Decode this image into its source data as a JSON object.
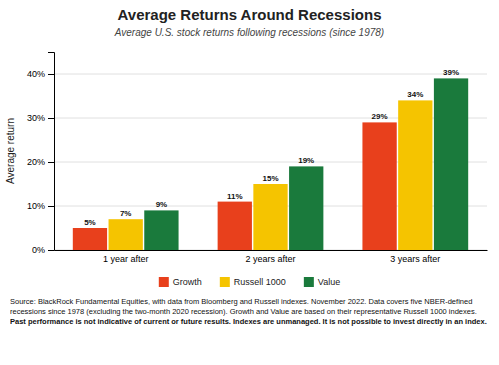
{
  "chart_data": {
    "type": "bar",
    "title": "Average Returns Around Recessions",
    "subtitle": "Average U.S. stock returns following recessions (since 1978)",
    "categories": [
      "1 year after",
      "2 years after",
      "3 years after"
    ],
    "series": [
      {
        "name": "Growth",
        "color": "#E8401C",
        "values": [
          5,
          11,
          29
        ],
        "value_labels": [
          "5%",
          "11%",
          "29%"
        ]
      },
      {
        "name": "Russell 1000",
        "color": "#F5C400",
        "values": [
          7,
          15,
          34
        ],
        "value_labels": [
          "7%",
          "15%",
          "34%"
        ]
      },
      {
        "name": "Value",
        "color": "#1A7A3C",
        "values": [
          9,
          19,
          39
        ],
        "value_labels": [
          "9%",
          "19%",
          "39%"
        ]
      }
    ],
    "ylabel": "Average return",
    "ylim": [
      0,
      45
    ],
    "yticks": [
      {
        "value": 0,
        "label": "0%"
      },
      {
        "value": 10,
        "label": "10%"
      },
      {
        "value": 20,
        "label": "20%"
      },
      {
        "value": 30,
        "label": "30%"
      },
      {
        "value": 40,
        "label": "40%"
      }
    ],
    "grid": true,
    "legend": "bottom",
    "data_labels": true,
    "footer": [
      "Source: BlackRock Fundamental Equities, with data from Bloomberg and Russell indexes. November 2022. Data covers five NBER-defined recessions since 1978 (excluding the two-month 2020 recession). Growth and Value are based on their representative Russell 1000 indexes. ",
      "Past performance is not indicative of current or future results. Indexes are unmanaged. It is not possible to invest directly in an index."
    ]
  }
}
